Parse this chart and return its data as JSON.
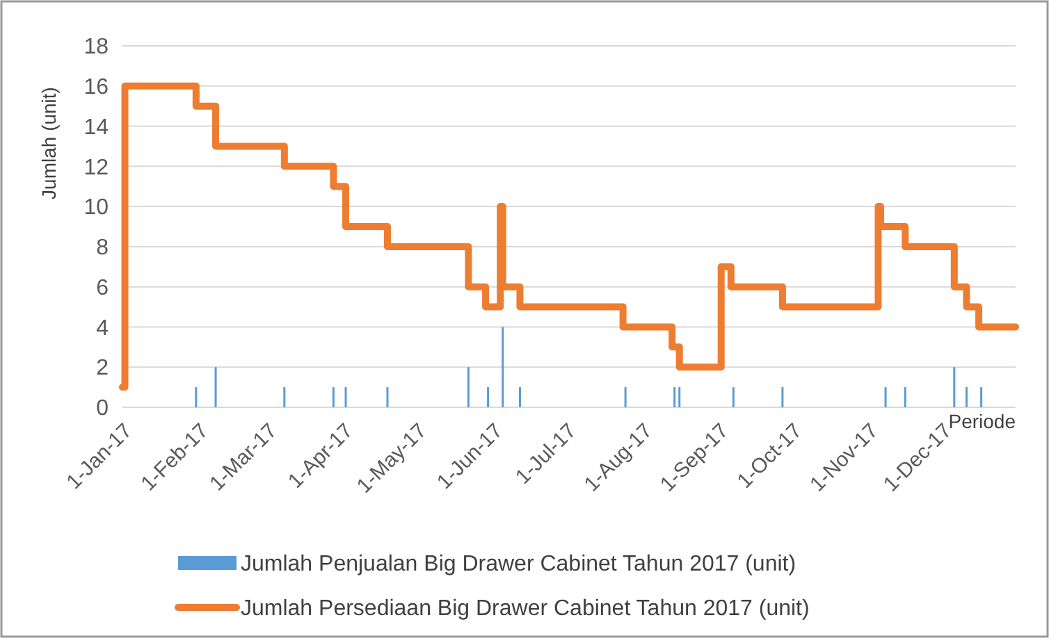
{
  "chart_data": {
    "type": "step",
    "xlabel": "Periode",
    "ylabel": "Jumlah (unit)",
    "xlim": [
      "2017-01-01",
      "2017-12-31"
    ],
    "xticks": [
      {
        "value": "2017-01-01",
        "label": "1-Jan-17"
      },
      {
        "value": "2017-02-01",
        "label": "1-Feb-17"
      },
      {
        "value": "2017-03-01",
        "label": "1-Mar-17"
      },
      {
        "value": "2017-04-01",
        "label": "1-Apr-17"
      },
      {
        "value": "2017-05-01",
        "label": "1-May-17"
      },
      {
        "value": "2017-06-01",
        "label": "1-Jun-17"
      },
      {
        "value": "2017-07-01",
        "label": "1-Jul-17"
      },
      {
        "value": "2017-08-01",
        "label": "1-Aug-17"
      },
      {
        "value": "2017-09-01",
        "label": "1-Sep-17"
      },
      {
        "value": "2017-10-01",
        "label": "1-Oct-17"
      },
      {
        "value": "2017-11-01",
        "label": "1-Nov-17"
      },
      {
        "value": "2017-12-01",
        "label": "1-Dec-17"
      }
    ],
    "ylim": [
      0,
      18
    ],
    "yticks": [
      0,
      2,
      4,
      6,
      8,
      10,
      12,
      14,
      16,
      18
    ],
    "grid": "y",
    "legend": "bottom",
    "series": [
      {
        "name": "Jumlah Penjualan Big Drawer Cabinet Tahun 2017 (unit)",
        "type": "bar",
        "color": "#5b9bd5",
        "x": [
          "2017-01-31",
          "2017-02-08",
          "2017-03-08",
          "2017-03-28",
          "2017-04-02",
          "2017-04-19",
          "2017-05-22",
          "2017-05-30",
          "2017-06-05",
          "2017-06-12",
          "2017-07-25",
          "2017-08-14",
          "2017-08-16",
          "2017-09-07",
          "2017-09-27",
          "2017-11-08",
          "2017-11-16",
          "2017-12-06",
          "2017-12-11",
          "2017-12-17"
        ],
        "values": [
          1,
          2,
          1,
          1,
          1,
          1,
          2,
          1,
          4,
          1,
          1,
          1,
          1,
          1,
          1,
          1,
          1,
          2,
          1,
          1
        ]
      },
      {
        "name": "Jumlah Persediaan Big Drawer Cabinet Tahun 2017 (unit)",
        "color": "#ed7d31",
        "x": [
          "2017-01-01",
          "2017-01-02",
          "2017-01-31",
          "2017-02-08",
          "2017-03-08",
          "2017-03-28",
          "2017-04-02",
          "2017-04-19",
          "2017-05-22",
          "2017-05-29",
          "2017-06-04",
          "2017-06-05",
          "2017-06-12",
          "2017-07-24",
          "2017-08-13",
          "2017-08-16",
          "2017-09-02",
          "2017-09-06",
          "2017-09-27",
          "2017-11-05",
          "2017-11-06",
          "2017-11-16",
          "2017-12-06",
          "2017-12-11",
          "2017-12-16",
          "2017-12-31"
        ],
        "values": [
          1,
          16,
          15,
          13,
          12,
          11,
          9,
          8,
          6,
          5,
          10,
          6,
          5,
          4,
          3,
          2,
          7,
          6,
          5,
          10,
          9,
          8,
          6,
          5,
          4,
          4
        ]
      }
    ]
  }
}
